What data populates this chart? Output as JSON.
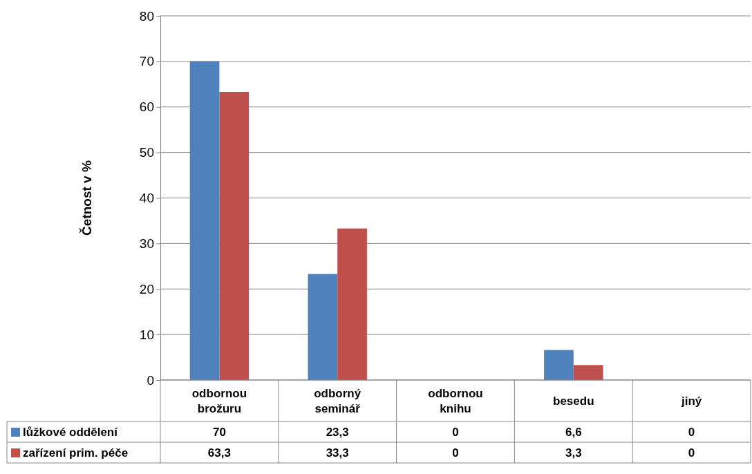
{
  "chart_data": {
    "type": "bar",
    "ylabel": "Četnost v %",
    "categories": [
      "odbornou brožuru",
      "odborný seminář",
      "odbornou knihu",
      "besedu",
      "jiný"
    ],
    "series": [
      {
        "name": "lůžkové oddělení",
        "color": "#4f81bd",
        "values": [
          70,
          23.3,
          0,
          6.6,
          0
        ],
        "value_labels": [
          "70",
          "23,3",
          "0",
          "6,6",
          "0"
        ]
      },
      {
        "name": "zařízení prim. péče",
        "color": "#c0504d",
        "values": [
          63.3,
          33.3,
          0,
          3.3,
          0
        ],
        "value_labels": [
          "63,3",
          "33,3",
          "0",
          "3,3",
          "0"
        ]
      }
    ],
    "ylim": [
      0,
      80
    ],
    "yticks": [
      0,
      10,
      20,
      30,
      40,
      50,
      60,
      70,
      80
    ],
    "grid": "y",
    "legend": "bottom"
  }
}
